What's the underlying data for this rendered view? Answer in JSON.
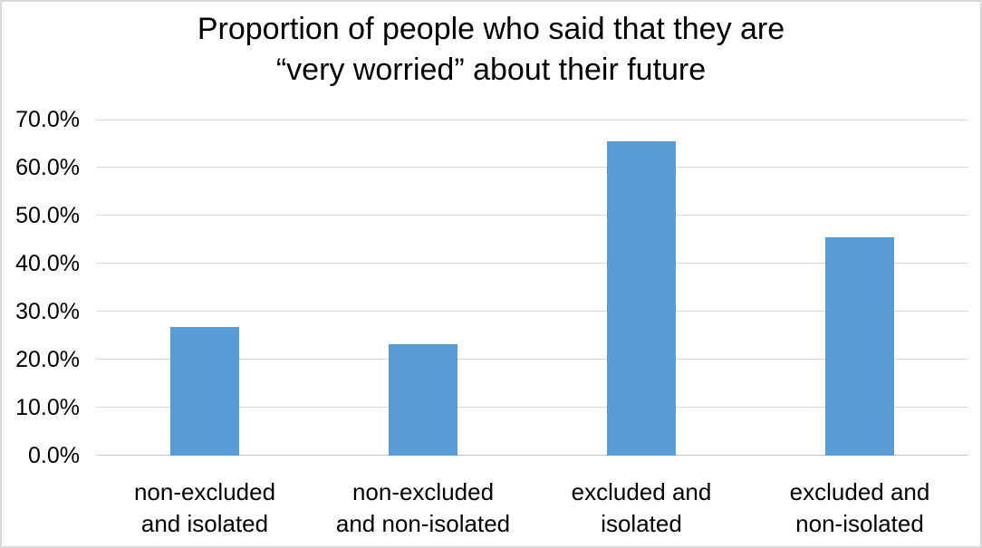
{
  "chart_data": {
    "type": "bar",
    "title": "Proportion of people who said that they are “very worried” about their future",
    "title_lines": [
      "Proportion of people who said that they are",
      "“very worried” about their future"
    ],
    "categories": [
      "non-excluded and isolated",
      "non-excluded and non-isolated",
      "excluded and isolated",
      "excluded and non-isolated"
    ],
    "category_lines": [
      [
        "non-excluded",
        "and isolated"
      ],
      [
        "non-excluded",
        "and non-isolated"
      ],
      [
        "excluded and",
        "isolated"
      ],
      [
        "excluded and",
        "non-isolated"
      ]
    ],
    "values": [
      26.7,
      23.3,
      65.5,
      45.5
    ],
    "unit": "%",
    "xlabel": "",
    "ylabel": "",
    "ylim": [
      0,
      70
    ],
    "ytick_step": 10,
    "ytick_labels": [
      "0.0%",
      "10.0%",
      "20.0%",
      "30.0%",
      "40.0%",
      "50.0%",
      "60.0%",
      "70.0%"
    ],
    "grid": true,
    "legend_position": "none",
    "bar_color": "#5b9bd5",
    "gridline_color": "#d9d9d9",
    "axis_line_color": "#c9c9c9",
    "text_color": "#000000"
  }
}
